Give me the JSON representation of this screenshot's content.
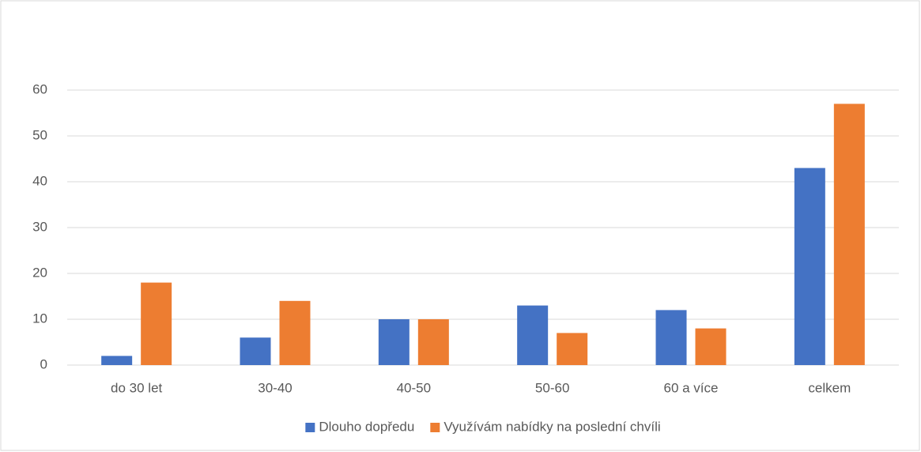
{
  "chart_data": {
    "type": "bar",
    "categories": [
      "do 30 let",
      "30-40",
      "40-50",
      "50-60",
      "60 a více",
      "celkem"
    ],
    "series": [
      {
        "name": "Dlouho dopředu",
        "color": "#4472c4",
        "values": [
          2,
          6,
          10,
          13,
          12,
          43
        ]
      },
      {
        "name": "Využívám nabídky na poslední chvíli",
        "color": "#ed7d31",
        "values": [
          18,
          14,
          10,
          7,
          8,
          57
        ]
      }
    ],
    "ylim": [
      0,
      60
    ],
    "yticks": [
      0,
      10,
      20,
      30,
      40,
      50,
      60
    ],
    "grid": true,
    "legend": "bottom"
  }
}
